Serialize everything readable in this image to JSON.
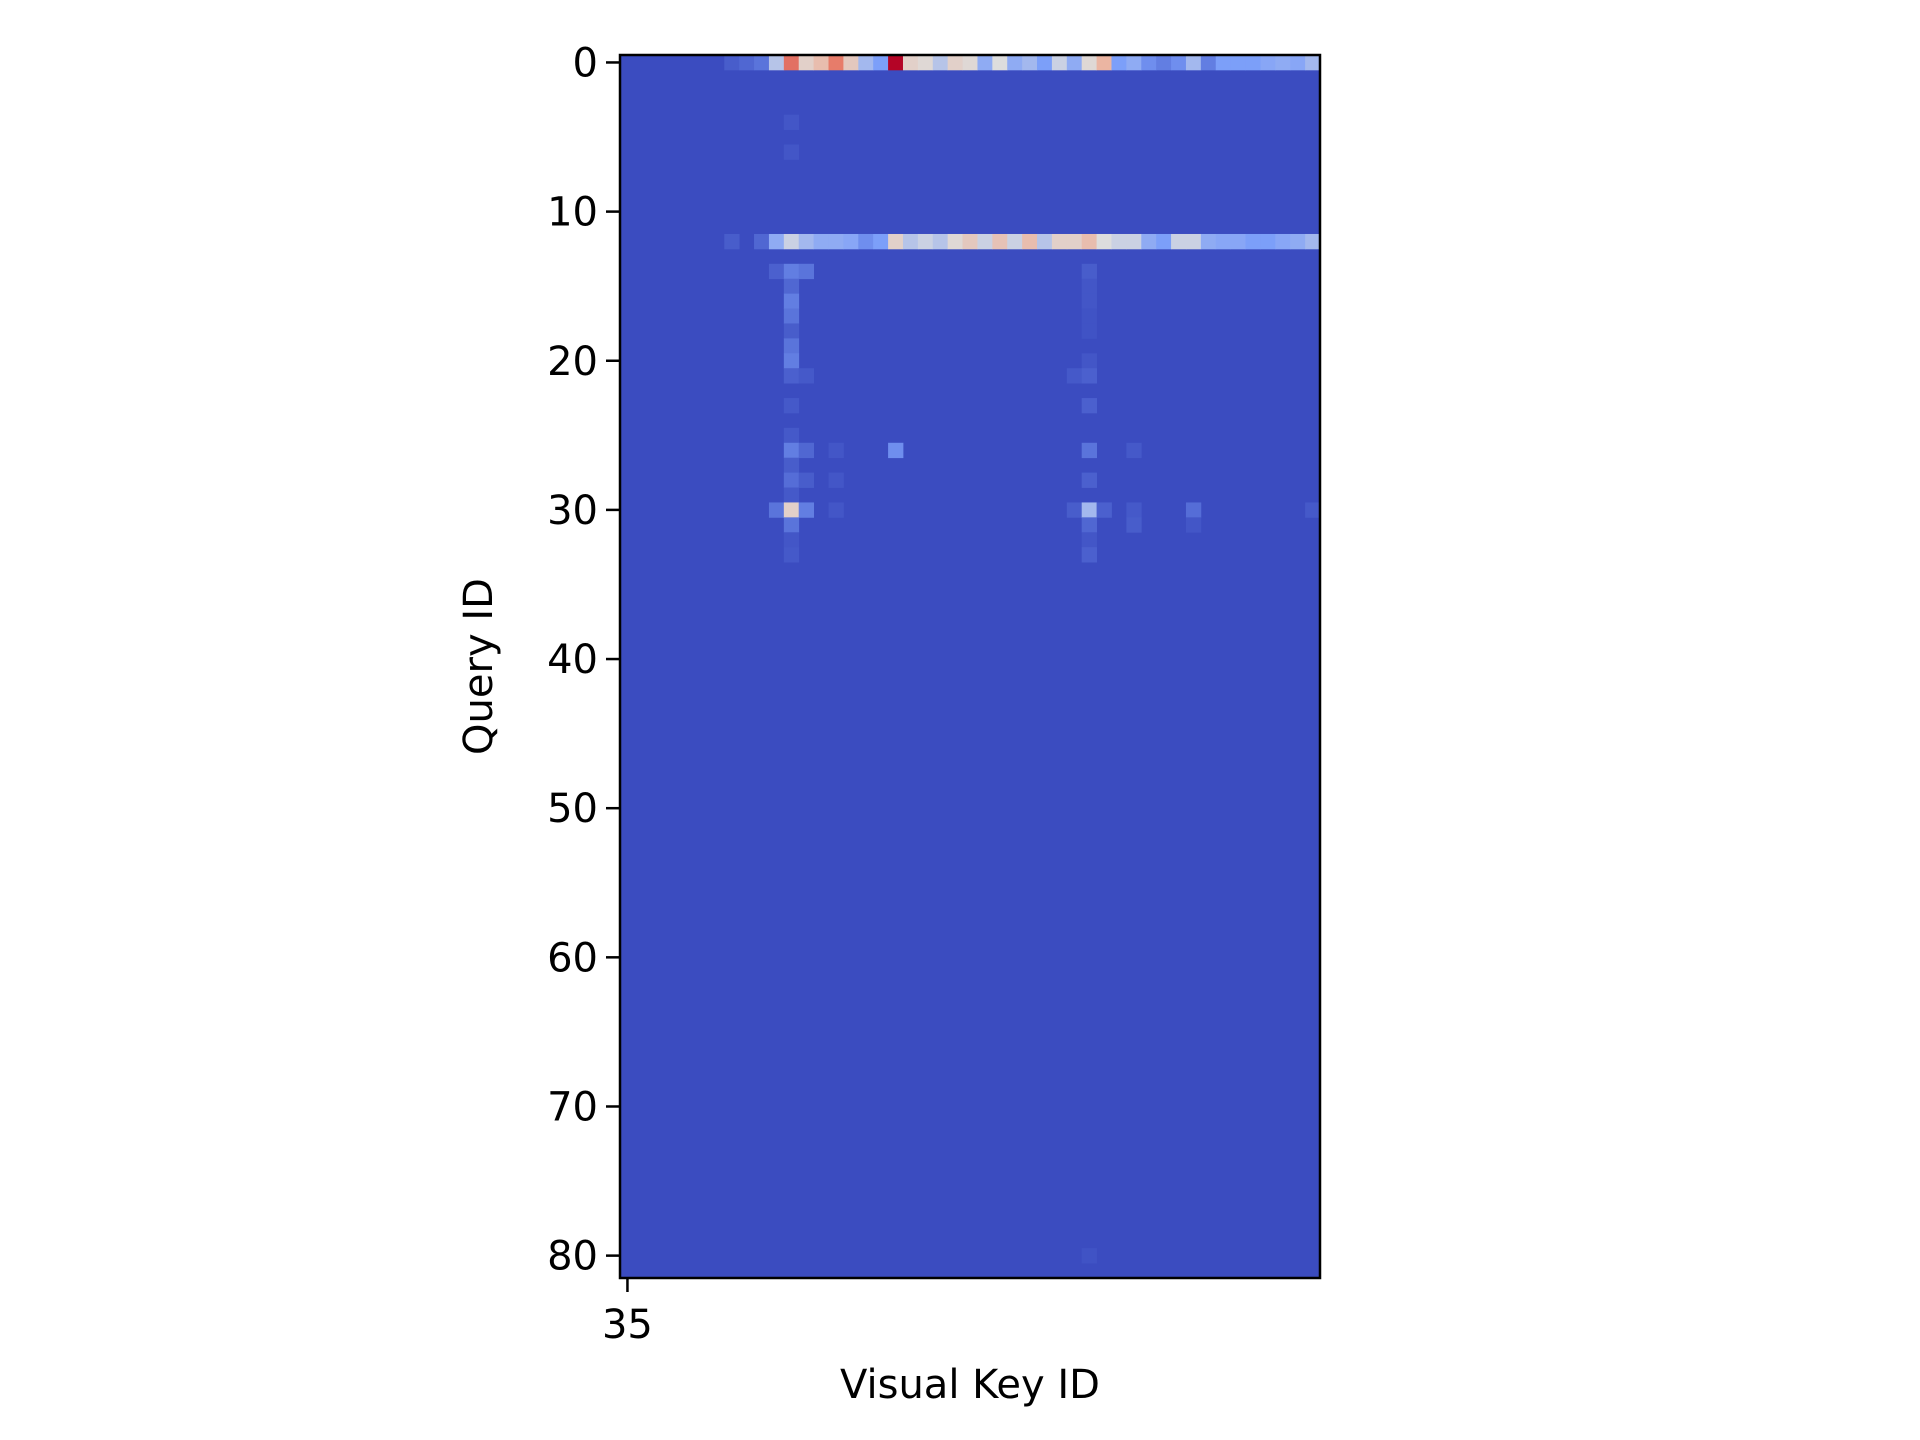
{
  "chart_data": {
    "type": "heatmap",
    "title": "",
    "xlabel": "Visual Key ID",
    "ylabel": "Query ID",
    "x_tick_labels": [
      "35"
    ],
    "y_tick_labels": [
      "0",
      "10",
      "20",
      "30",
      "40",
      "50",
      "60",
      "70",
      "80"
    ],
    "colormap": "coolwarm",
    "background_color": "#3b4cc0",
    "grid": false,
    "colorbar": false,
    "n_rows": 82,
    "n_cols": 47,
    "note_values": "normalized attention intensity 0-1; unlisted cells are 0",
    "cells": [
      {
        "row": 0,
        "col": 7,
        "value": 0.05
      },
      {
        "row": 0,
        "col": 8,
        "value": 0.08
      },
      {
        "row": 0,
        "col": 9,
        "value": 0.12
      },
      {
        "row": 0,
        "col": 10,
        "value": 0.4
      },
      {
        "row": 0,
        "col": 11,
        "value": 0.82
      },
      {
        "row": 0,
        "col": 12,
        "value": 0.55
      },
      {
        "row": 0,
        "col": 13,
        "value": 0.62
      },
      {
        "row": 0,
        "col": 14,
        "value": 0.8
      },
      {
        "row": 0,
        "col": 15,
        "value": 0.58
      },
      {
        "row": 0,
        "col": 16,
        "value": 0.35
      },
      {
        "row": 0,
        "col": 17,
        "value": 0.25
      },
      {
        "row": 0,
        "col": 18,
        "value": 1.0
      },
      {
        "row": 0,
        "col": 19,
        "value": 0.55
      },
      {
        "row": 0,
        "col": 20,
        "value": 0.52
      },
      {
        "row": 0,
        "col": 21,
        "value": 0.4
      },
      {
        "row": 0,
        "col": 22,
        "value": 0.55
      },
      {
        "row": 0,
        "col": 23,
        "value": 0.52
      },
      {
        "row": 0,
        "col": 24,
        "value": 0.3
      },
      {
        "row": 0,
        "col": 25,
        "value": 0.5
      },
      {
        "row": 0,
        "col": 26,
        "value": 0.3
      },
      {
        "row": 0,
        "col": 27,
        "value": 0.35
      },
      {
        "row": 0,
        "col": 28,
        "value": 0.25
      },
      {
        "row": 0,
        "col": 29,
        "value": 0.45
      },
      {
        "row": 0,
        "col": 30,
        "value": 0.3
      },
      {
        "row": 0,
        "col": 31,
        "value": 0.52
      },
      {
        "row": 0,
        "col": 32,
        "value": 0.65
      },
      {
        "row": 0,
        "col": 33,
        "value": 0.25
      },
      {
        "row": 0,
        "col": 34,
        "value": 0.3
      },
      {
        "row": 0,
        "col": 35,
        "value": 0.2
      },
      {
        "row": 0,
        "col": 36,
        "value": 0.15
      },
      {
        "row": 0,
        "col": 37,
        "value": 0.2
      },
      {
        "row": 0,
        "col": 38,
        "value": 0.35
      },
      {
        "row": 0,
        "col": 39,
        "value": 0.15
      },
      {
        "row": 0,
        "col": 40,
        "value": 0.25
      },
      {
        "row": 0,
        "col": 41,
        "value": 0.25
      },
      {
        "row": 0,
        "col": 42,
        "value": 0.25
      },
      {
        "row": 0,
        "col": 43,
        "value": 0.28
      },
      {
        "row": 0,
        "col": 44,
        "value": 0.3
      },
      {
        "row": 0,
        "col": 45,
        "value": 0.28
      },
      {
        "row": 0,
        "col": 46,
        "value": 0.35
      },
      {
        "row": 4,
        "col": 11,
        "value": 0.03
      },
      {
        "row": 6,
        "col": 11,
        "value": 0.03
      },
      {
        "row": 12,
        "col": 7,
        "value": 0.05
      },
      {
        "row": 12,
        "col": 9,
        "value": 0.08
      },
      {
        "row": 12,
        "col": 10,
        "value": 0.3
      },
      {
        "row": 12,
        "col": 11,
        "value": 0.45
      },
      {
        "row": 12,
        "col": 12,
        "value": 0.35
      },
      {
        "row": 12,
        "col": 13,
        "value": 0.3
      },
      {
        "row": 12,
        "col": 14,
        "value": 0.3
      },
      {
        "row": 12,
        "col": 15,
        "value": 0.28
      },
      {
        "row": 12,
        "col": 16,
        "value": 0.2
      },
      {
        "row": 12,
        "col": 17,
        "value": 0.25
      },
      {
        "row": 12,
        "col": 18,
        "value": 0.55
      },
      {
        "row": 12,
        "col": 19,
        "value": 0.4
      },
      {
        "row": 12,
        "col": 20,
        "value": 0.45
      },
      {
        "row": 12,
        "col": 21,
        "value": 0.4
      },
      {
        "row": 12,
        "col": 22,
        "value": 0.52
      },
      {
        "row": 12,
        "col": 23,
        "value": 0.58
      },
      {
        "row": 12,
        "col": 24,
        "value": 0.45
      },
      {
        "row": 12,
        "col": 25,
        "value": 0.6
      },
      {
        "row": 12,
        "col": 26,
        "value": 0.45
      },
      {
        "row": 12,
        "col": 27,
        "value": 0.62
      },
      {
        "row": 12,
        "col": 28,
        "value": 0.4
      },
      {
        "row": 12,
        "col": 29,
        "value": 0.55
      },
      {
        "row": 12,
        "col": 30,
        "value": 0.55
      },
      {
        "row": 12,
        "col": 31,
        "value": 0.62
      },
      {
        "row": 12,
        "col": 32,
        "value": 0.5
      },
      {
        "row": 12,
        "col": 33,
        "value": 0.45
      },
      {
        "row": 12,
        "col": 34,
        "value": 0.45
      },
      {
        "row": 12,
        "col": 35,
        "value": 0.3
      },
      {
        "row": 12,
        "col": 36,
        "value": 0.25
      },
      {
        "row": 12,
        "col": 37,
        "value": 0.45
      },
      {
        "row": 12,
        "col": 38,
        "value": 0.45
      },
      {
        "row": 12,
        "col": 39,
        "value": 0.3
      },
      {
        "row": 12,
        "col": 40,
        "value": 0.28
      },
      {
        "row": 12,
        "col": 41,
        "value": 0.28
      },
      {
        "row": 12,
        "col": 42,
        "value": 0.25
      },
      {
        "row": 12,
        "col": 43,
        "value": 0.25
      },
      {
        "row": 12,
        "col": 44,
        "value": 0.28
      },
      {
        "row": 12,
        "col": 45,
        "value": 0.3
      },
      {
        "row": 12,
        "col": 46,
        "value": 0.35
      },
      {
        "row": 14,
        "col": 10,
        "value": 0.06
      },
      {
        "row": 14,
        "col": 11,
        "value": 0.15
      },
      {
        "row": 14,
        "col": 12,
        "value": 0.12
      },
      {
        "row": 14,
        "col": 31,
        "value": 0.05
      },
      {
        "row": 15,
        "col": 11,
        "value": 0.08
      },
      {
        "row": 15,
        "col": 31,
        "value": 0.03
      },
      {
        "row": 16,
        "col": 11,
        "value": 0.15
      },
      {
        "row": 16,
        "col": 31,
        "value": 0.03
      },
      {
        "row": 17,
        "col": 11,
        "value": 0.12
      },
      {
        "row": 17,
        "col": 31,
        "value": 0.02
      },
      {
        "row": 18,
        "col": 11,
        "value": 0.05
      },
      {
        "row": 18,
        "col": 31,
        "value": 0.02
      },
      {
        "row": 19,
        "col": 11,
        "value": 0.12
      },
      {
        "row": 20,
        "col": 11,
        "value": 0.15
      },
      {
        "row": 20,
        "col": 31,
        "value": 0.03
      },
      {
        "row": 21,
        "col": 11,
        "value": 0.06
      },
      {
        "row": 21,
        "col": 12,
        "value": 0.04
      },
      {
        "row": 21,
        "col": 30,
        "value": 0.04
      },
      {
        "row": 21,
        "col": 31,
        "value": 0.06
      },
      {
        "row": 23,
        "col": 11,
        "value": 0.04
      },
      {
        "row": 23,
        "col": 31,
        "value": 0.06
      },
      {
        "row": 25,
        "col": 11,
        "value": 0.04
      },
      {
        "row": 26,
        "col": 11,
        "value": 0.15
      },
      {
        "row": 26,
        "col": 12,
        "value": 0.08
      },
      {
        "row": 26,
        "col": 14,
        "value": 0.03
      },
      {
        "row": 26,
        "col": 18,
        "value": 0.2
      },
      {
        "row": 26,
        "col": 31,
        "value": 0.12
      },
      {
        "row": 26,
        "col": 34,
        "value": 0.04
      },
      {
        "row": 27,
        "col": 11,
        "value": 0.05
      },
      {
        "row": 28,
        "col": 11,
        "value": 0.1
      },
      {
        "row": 28,
        "col": 12,
        "value": 0.05
      },
      {
        "row": 28,
        "col": 14,
        "value": 0.03
      },
      {
        "row": 28,
        "col": 31,
        "value": 0.06
      },
      {
        "row": 29,
        "col": 11,
        "value": 0.04
      },
      {
        "row": 30,
        "col": 10,
        "value": 0.12
      },
      {
        "row": 30,
        "col": 11,
        "value": 0.55
      },
      {
        "row": 30,
        "col": 12,
        "value": 0.15
      },
      {
        "row": 30,
        "col": 14,
        "value": 0.03
      },
      {
        "row": 30,
        "col": 30,
        "value": 0.05
      },
      {
        "row": 30,
        "col": 31,
        "value": 0.35
      },
      {
        "row": 30,
        "col": 32,
        "value": 0.06
      },
      {
        "row": 30,
        "col": 34,
        "value": 0.04
      },
      {
        "row": 30,
        "col": 38,
        "value": 0.1
      },
      {
        "row": 30,
        "col": 46,
        "value": 0.04
      },
      {
        "row": 31,
        "col": 11,
        "value": 0.12
      },
      {
        "row": 31,
        "col": 31,
        "value": 0.08
      },
      {
        "row": 31,
        "col": 34,
        "value": 0.05
      },
      {
        "row": 31,
        "col": 38,
        "value": 0.03
      },
      {
        "row": 32,
        "col": 11,
        "value": 0.03
      },
      {
        "row": 32,
        "col": 31,
        "value": 0.03
      },
      {
        "row": 33,
        "col": 11,
        "value": 0.04
      },
      {
        "row": 33,
        "col": 31,
        "value": 0.06
      },
      {
        "row": 80,
        "col": 31,
        "value": 0.02
      }
    ]
  }
}
